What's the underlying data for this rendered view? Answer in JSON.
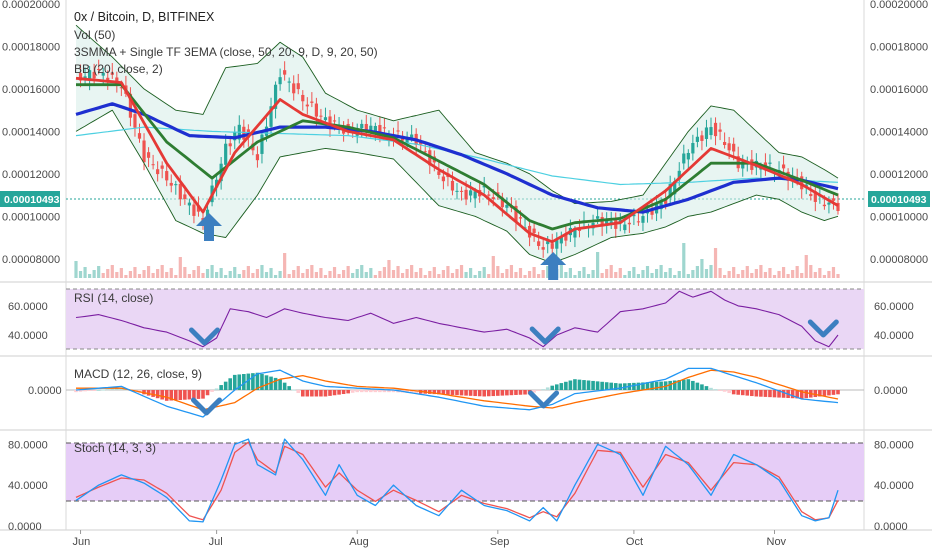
{
  "header": {
    "title": "0x / Bitcoin, D, BITFINEX",
    "vol_label": "Vol (50)",
    "ema_label": "3SMMA + Single TF 3EMA (close, 50, 20, 9, D, 9, 20, 50)",
    "bb_label": "BB (20, close, 2)"
  },
  "current_price": {
    "value": "0.00010493",
    "left": "0.00010493",
    "right": "0.00010493"
  },
  "chart_data": [
    {
      "type": "line",
      "panel": "price",
      "title": "0x / Bitcoin, D, BITFINEX",
      "ylim": [
        7e-05,
        0.0002
      ],
      "y_ticks": [
        "0.00008000",
        "0.00010000",
        "0.00012000",
        "0.00014000",
        "0.00016000",
        "0.00018000",
        "0.00020000"
      ],
      "x_ticks": [
        "Jun",
        "Jul",
        "Aug",
        "Sep",
        "Oct",
        "Nov"
      ],
      "x_tick_days": [
        1,
        31,
        62,
        93,
        123,
        154
      ],
      "series": [
        {
          "name": "close",
          "color": "#26a69a",
          "x": [
            0,
            5,
            10,
            15,
            20,
            25,
            28,
            30,
            33,
            36,
            40,
            45,
            50,
            55,
            60,
            65,
            70,
            75,
            80,
            85,
            90,
            95,
            100,
            103,
            106,
            110,
            115,
            120,
            125,
            130,
            135,
            140,
            143,
            146,
            150,
            155,
            160,
            163,
            168
          ],
          "values": [
            0.000165,
            0.000168,
            0.000162,
            0.000128,
            0.000118,
            0.000105,
            9.8e-05,
            0.000112,
            0.000132,
            0.000142,
            0.000128,
            0.000168,
            0.000155,
            0.000145,
            0.00014,
            0.000142,
            0.000138,
            0.000136,
            0.00012,
            0.00011,
            0.000112,
            0.000105,
            9.2e-05,
            8.5e-05,
            8.8e-05,
            9.4e-05,
            9.8e-05,
            9.6e-05,
            0.0001,
            0.000108,
            0.000132,
            0.000142,
            0.000135,
            0.000125,
            0.000124,
            0.000122,
            0.000115,
            0.000108,
            0.000105
          ]
        },
        {
          "name": "ema9",
          "color": "#e53935",
          "x": [
            0,
            10,
            20,
            28,
            35,
            45,
            50,
            60,
            70,
            80,
            90,
            100,
            105,
            110,
            120,
            130,
            140,
            150,
            160,
            168
          ],
          "values": [
            0.000165,
            0.000163,
            0.000125,
            0.000102,
            0.00013,
            0.000155,
            0.000148,
            0.00014,
            0.000136,
            0.000122,
            0.00011,
            9.2e-05,
            8.8e-05,
            9.4e-05,
            9.7e-05,
            0.000112,
            0.000132,
            0.000124,
            0.000115,
            0.000105
          ]
        },
        {
          "name": "ema20",
          "color": "#2e7d32",
          "x": [
            0,
            10,
            20,
            30,
            40,
            50,
            60,
            70,
            80,
            90,
            100,
            105,
            110,
            120,
            130,
            140,
            150,
            160,
            168
          ],
          "values": [
            0.000162,
            0.000162,
            0.000135,
            0.000118,
            0.000135,
            0.000145,
            0.000142,
            0.000137,
            0.000126,
            0.000115,
            9.8e-05,
            9.4e-05,
            9.7e-05,
            9.9e-05,
            0.000108,
            0.000125,
            0.000125,
            0.000117,
            0.00011
          ]
        },
        {
          "name": "ema50",
          "color": "#1e2fd0",
          "x": [
            0,
            8,
            15,
            25,
            35,
            45,
            55,
            65,
            75,
            85,
            95,
            105,
            115,
            125,
            135,
            145,
            155,
            160,
            168
          ],
          "values": [
            0.000148,
            0.000153,
            0.000148,
            0.000138,
            0.000137,
            0.000142,
            0.000142,
            0.00014,
            0.000136,
            0.000129,
            0.00012,
            0.00011,
            0.000104,
            0.000102,
            0.000108,
            0.000116,
            0.000118,
            0.000117,
            0.000113
          ]
        },
        {
          "name": "sma",
          "color": "#4dd0e1",
          "x": [
            0,
            15,
            30,
            45,
            60,
            75,
            90,
            105,
            120,
            135,
            150,
            168
          ],
          "values": [
            0.000138,
            0.000142,
            0.00014,
            0.000139,
            0.000138,
            0.000134,
            0.000127,
            0.000119,
            0.000115,
            0.000116,
            0.000118,
            0.000116
          ]
        },
        {
          "name": "bb_upper",
          "color": "#1b5e20",
          "x": [
            0,
            8,
            15,
            22,
            28,
            33,
            40,
            45,
            50,
            55,
            62,
            70,
            80,
            88,
            95,
            100,
            105,
            110,
            118,
            125,
            130,
            135,
            140,
            145,
            150,
            155,
            160,
            165,
            168
          ],
          "values": [
            0.00019,
            0.000175,
            0.00016,
            0.00015,
            0.000148,
            0.00017,
            0.000172,
            0.000182,
            0.000175,
            0.000158,
            0.00015,
            0.000145,
            0.00015,
            0.00013,
            0.000125,
            0.00012,
            0.000112,
            0.000106,
            0.000107,
            0.00011,
            0.000125,
            0.00014,
            0.000152,
            0.00015,
            0.00014,
            0.00013,
            0.000128,
            0.000122,
            0.000118
          ]
        },
        {
          "name": "bb_lower",
          "color": "#1b5e20",
          "x": [
            0,
            8,
            15,
            22,
            28,
            33,
            40,
            45,
            50,
            55,
            62,
            70,
            80,
            88,
            95,
            100,
            105,
            110,
            118,
            125,
            130,
            135,
            140,
            145,
            150,
            155,
            160,
            165,
            168
          ],
          "values": [
            0.00014,
            0.00015,
            0.000125,
            9.8e-05,
            9.2e-05,
            9e-05,
            0.00011,
            0.000128,
            0.00013,
            0.000132,
            0.00013,
            0.000127,
            0.000105,
            0.0001,
            9.3e-05,
            8.2e-05,
            7.8e-05,
            8.2e-05,
            9e-05,
            9.2e-05,
            9.5e-05,
            0.0001,
            0.000102,
            0.000106,
            0.00011,
            0.000108,
            0.000102,
            9.8e-05,
            0.0001
          ]
        }
      ],
      "arrows_up_days": [
        28,
        103
      ]
    },
    {
      "type": "line",
      "panel": "rsi",
      "title": "RSI (14, close)",
      "ylim": [
        27,
        75
      ],
      "y_ticks": [
        "40.0000",
        "60.0000"
      ],
      "series": [
        {
          "name": "RSI",
          "color": "#7b1fa2",
          "x": [
            0,
            5,
            10,
            15,
            20,
            25,
            28,
            31,
            34,
            38,
            42,
            46,
            50,
            55,
            60,
            65,
            70,
            75,
            80,
            85,
            90,
            95,
            100,
            103,
            106,
            110,
            115,
            120,
            125,
            130,
            133,
            136,
            140,
            143,
            146,
            150,
            155,
            160,
            163,
            166,
            168
          ],
          "values": [
            52,
            54,
            50,
            45,
            42,
            36,
            32,
            38,
            58,
            56,
            52,
            58,
            55,
            52,
            50,
            55,
            48,
            52,
            48,
            45,
            42,
            44,
            38,
            32,
            40,
            45,
            42,
            56,
            58,
            62,
            70,
            66,
            70,
            64,
            60,
            58,
            54,
            46,
            36,
            32,
            40
          ]
        }
      ],
      "arrows_down_days": [
        27,
        103,
        163
      ]
    },
    {
      "type": "bar",
      "panel": "macd",
      "title": "MACD (12, 26, close, 9)",
      "y_ticks": [
        "0.0000"
      ],
      "series": [
        {
          "name": "MACD",
          "color": "#2196f3",
          "x": [
            0,
            10,
            20,
            28,
            35,
            40,
            45,
            50,
            55,
            62,
            70,
            80,
            90,
            100,
            105,
            110,
            120,
            130,
            135,
            140,
            145,
            150,
            160,
            168
          ],
          "values": [
            0.0,
            0.2,
            -0.9,
            -1.5,
            0.0,
            0.9,
            1.1,
            0.5,
            0.2,
            0.1,
            0.0,
            -0.4,
            -0.9,
            -1.1,
            -0.8,
            -0.2,
            0.1,
            0.6,
            1.2,
            1.2,
            0.8,
            0.4,
            -0.5,
            -0.7
          ]
        },
        {
          "name": "Signal",
          "color": "#ff6d00",
          "x": [
            0,
            10,
            20,
            28,
            35,
            40,
            45,
            50,
            55,
            62,
            70,
            80,
            90,
            100,
            105,
            110,
            120,
            130,
            135,
            140,
            145,
            150,
            160,
            168
          ],
          "values": [
            0.1,
            0.1,
            -0.4,
            -1.1,
            -0.7,
            0.1,
            0.6,
            0.8,
            0.5,
            0.2,
            0.1,
            -0.2,
            -0.6,
            -0.9,
            -1.0,
            -0.7,
            -0.2,
            0.2,
            0.7,
            1.1,
            1.0,
            0.7,
            -0.1,
            -0.5
          ]
        }
      ],
      "arrows_down_days": [
        27,
        100
      ]
    },
    {
      "type": "line",
      "panel": "stoch",
      "title": "Stoch (14, 3, 3)",
      "ylim": [
        -2,
        92
      ],
      "y_ticks": [
        "0.0000",
        "40.0000",
        "80.0000"
      ],
      "series": [
        {
          "name": "%K",
          "color": "#2196f3",
          "x": [
            0,
            5,
            10,
            15,
            20,
            25,
            28,
            32,
            35,
            38,
            40,
            44,
            46,
            50,
            55,
            58,
            62,
            66,
            70,
            75,
            80,
            85,
            90,
            95,
            100,
            103,
            106,
            110,
            115,
            120,
            125,
            130,
            135,
            140,
            145,
            150,
            155,
            160,
            163,
            166,
            168
          ],
          "values": [
            25,
            40,
            50,
            42,
            28,
            5,
            4,
            45,
            80,
            85,
            60,
            50,
            85,
            65,
            30,
            60,
            30,
            20,
            40,
            20,
            10,
            35,
            20,
            15,
            5,
            18,
            5,
            40,
            80,
            70,
            30,
            78,
            60,
            30,
            70,
            60,
            45,
            10,
            5,
            8,
            35
          ]
        },
        {
          "name": "%D",
          "color": "#ef5350",
          "x": [
            0,
            5,
            10,
            15,
            20,
            25,
            28,
            32,
            35,
            38,
            40,
            44,
            46,
            50,
            55,
            58,
            62,
            66,
            70,
            75,
            80,
            85,
            90,
            95,
            100,
            103,
            106,
            110,
            115,
            120,
            125,
            130,
            135,
            140,
            145,
            150,
            155,
            160,
            163,
            166,
            168
          ],
          "values": [
            28,
            38,
            47,
            45,
            32,
            10,
            6,
            35,
            72,
            82,
            65,
            52,
            78,
            70,
            38,
            52,
            35,
            24,
            35,
            25,
            14,
            30,
            22,
            17,
            8,
            14,
            9,
            32,
            74,
            72,
            38,
            70,
            62,
            35,
            62,
            60,
            48,
            14,
            6,
            8,
            25
          ]
        }
      ]
    }
  ],
  "colors": {
    "bull": "#26a69a",
    "bear": "#ef5350",
    "ema_red": "#e53935",
    "ema_green": "#2e7d32",
    "ema_blue": "#1e2fd0",
    "sma_cyan": "#4dd0e1",
    "rsi": "#7b1fa2",
    "rsi_band": "#ead7f5",
    "stoch_band": "#e6cdf7",
    "arrow": "#3c7fc0"
  }
}
